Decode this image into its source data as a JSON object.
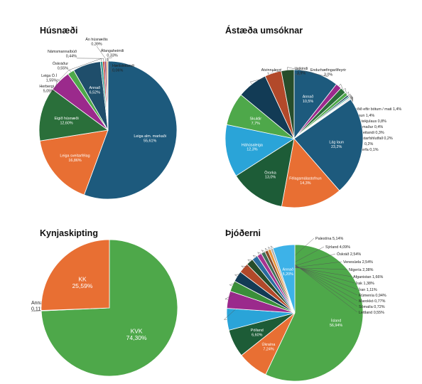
{
  "colors": {
    "navy": "#1d5a7d",
    "orange": "#e86f33",
    "green": "#2a6f3a",
    "purple": "#9b2a8c",
    "lightgreen": "#4ea84a",
    "teal": "#2f9b8f",
    "lightblue": "#2aa4d8",
    "darkgreen": "#1d5c37",
    "darknavy": "#123b55",
    "rust": "#b2492a",
    "deepgreen": "#264d2b",
    "blue2": "#2a6da0",
    "magenta": "#a63491",
    "grey": "#b0b0b0",
    "brown": "#8a4a2a",
    "sky": "#3db2e8"
  },
  "chart_data": [
    {
      "type": "pie",
      "title": "Húsnæði",
      "slices": [
        {
          "label": "Leiga alm. markaði",
          "value": 55.61,
          "value_text": "55,61%",
          "color": "#1d5a7d",
          "label_pos": "inside"
        },
        {
          "label": "Leiga sveitarfélag",
          "value": 16.86,
          "value_text": "16,86%",
          "color": "#e86f33",
          "label_pos": "inside"
        },
        {
          "label": "Eigið húsnæði",
          "value": 12.6,
          "value_text": "12,60%",
          "color": "#2a6f3a",
          "label_pos": "inside"
        },
        {
          "label": "Herbergi",
          "value": 5.05,
          "value_text": "5,05%",
          "color": "#9b2a8c",
          "label_pos": "outside"
        },
        {
          "label": "Leiga Ö.Í",
          "value": 1.55,
          "value_text": "1,55%",
          "color": "#4ea84a",
          "label_pos": "outside"
        },
        {
          "label": "Annað",
          "value": 6.52,
          "value_text": "6,52%",
          "color": "#1f4e6b",
          "label_pos": "inside"
        },
        {
          "label": "Óskráður",
          "value": 0.55,
          "value_text": "0,55%",
          "color": "#2f9b8f",
          "label_pos": "outside"
        },
        {
          "label": "Námsmannaíbúð",
          "value": 0.44,
          "value_text": "0,44%",
          "color": "#c0392b",
          "label_pos": "outside"
        },
        {
          "label": "Án húsnæðis",
          "value": 0.39,
          "value_text": "0,39%",
          "color": "#7a2a6e",
          "label_pos": "outside"
        },
        {
          "label": "Áfangaheimili",
          "value": 0.33,
          "value_text": "0,33%",
          "color": "#d98c3c",
          "label_pos": "outside"
        },
        {
          "label": "Hælisleitandi",
          "value": 0.06,
          "value_text": "0,06%",
          "color": "#888888",
          "label_pos": "outside"
        }
      ]
    },
    {
      "type": "pie",
      "title": "Ástæða umsóknar",
      "slices": [
        {
          "label": "Annað",
          "value": 10.5,
          "value_text": "10,5%",
          "color": "#1d5a7d",
          "label_pos": "inside"
        },
        {
          "label": "Beðið eftir bótum / mati",
          "value": 1.4,
          "value_text": "1,4%",
          "color": "#9b2a8c",
          "label_pos": "outside"
        },
        {
          "label": "Ellilaun",
          "value": 1.4,
          "value_text": "1,4%",
          "color": "#2a6f3a",
          "label_pos": "outside"
        },
        {
          "label": "Maki tekjulaus",
          "value": 0.8,
          "value_text": "0,8%",
          "color": "#4ea84a",
          "label_pos": "outside"
        },
        {
          "label": "Námsmaður",
          "value": 0.4,
          "value_text": "0,4%",
          "color": "#123b55",
          "label_pos": "outside"
        },
        {
          "label": "Hælisleitandi",
          "value": 0.3,
          "value_text": "0,3%",
          "color": "#2f9b8f",
          "label_pos": "outside"
        },
        {
          "label": "Skert starfshlutfall",
          "value": 0.2,
          "value_text": "0,2%",
          "color": "#b0b0b0",
          "label_pos": "outside"
        },
        {
          "label": "Vantar",
          "value": 0.2,
          "value_text": "0,2%",
          "color": "#7a7a7a",
          "label_pos": "outside"
        },
        {
          "label": "Milli kerfa",
          "value": 0.1,
          "value_text": "0,1%",
          "color": "#e86f33",
          "label_pos": "outside"
        },
        {
          "label": "Lág laun",
          "value": 23.2,
          "value_text": "23,2%",
          "color": "#1d5a7d",
          "label_pos": "inside"
        },
        {
          "label": "Félagsmálastofnun",
          "value": 14.3,
          "value_text": "14,3%",
          "color": "#e86f33",
          "label_pos": "inside"
        },
        {
          "label": "Örorka",
          "value": 13.0,
          "value_text": "13,0%",
          "color": "#1d5c37",
          "label_pos": "inside"
        },
        {
          "label": "Háhúsaleiga",
          "value": 12.3,
          "value_text": "12,3%",
          "color": "#2aa4d8",
          "label_pos": "inside"
        },
        {
          "label": "Skuldir",
          "value": 7.7,
          "value_text": "7,7%",
          "color": "#4ea84a",
          "label_pos": "inside"
        },
        {
          "label": "Atvinnuleysi",
          "value": 7.1,
          "value_text": "7,1%",
          "color": "#123b55",
          "label_pos": "outside-top"
        },
        {
          "label": "Veikindi",
          "value": 3.9,
          "value_text": "3,9%",
          "color": "#b2492a",
          "label_pos": "outside-top"
        },
        {
          "label": "Endurhæfingarlífeyrir",
          "value": 3.0,
          "value_text": "3,0%",
          "color": "#264d2b",
          "label_pos": "outside-top"
        }
      ]
    },
    {
      "type": "pie",
      "title": "Kynjaskipting",
      "slices": [
        {
          "label": "KVK",
          "value": 74.3,
          "value_text": "74,30%",
          "color": "#4ea84a",
          "label_pos": "inside"
        },
        {
          "label": "Annað",
          "value": 0.11,
          "value_text": "0,11%",
          "color": "#555555",
          "label_pos": "outside-left"
        },
        {
          "label": "KK",
          "value": 25.59,
          "value_text": "25,59%",
          "color": "#e86f33",
          "label_pos": "inside"
        }
      ]
    },
    {
      "type": "pie",
      "title": "Þjóðerni",
      "slices": [
        {
          "label": "Ísland",
          "value": 56.94,
          "value_text": "56,94%",
          "color": "#4ea84a",
          "label_pos": "inside"
        },
        {
          "label": "Úkraína",
          "value": 7.24,
          "value_text": "7,24%",
          "color": "#e86f33",
          "label_pos": "inside"
        },
        {
          "label": "Pólland",
          "value": 6.6,
          "value_text": "6,60%",
          "color": "#1d5c37",
          "label_pos": "inside"
        },
        {
          "label": "Palestína",
          "value": 5.14,
          "value_text": "5,14%",
          "color": "#2aa4d8",
          "label_pos": "outside"
        },
        {
          "label": "Sýrland",
          "value": 4.09,
          "value_text": "4,09%",
          "color": "#9b2a8c",
          "label_pos": "outside"
        },
        {
          "label": "Óskráð",
          "value": 2.54,
          "value_text": "2,54%",
          "color": "#3a8f3a",
          "label_pos": "outside"
        },
        {
          "label": "Venesúela",
          "value": 2.54,
          "value_text": "2,54%",
          "color": "#123b55",
          "label_pos": "outside"
        },
        {
          "label": "Nígería",
          "value": 2.38,
          "value_text": "2,38%",
          "color": "#b2492a",
          "label_pos": "outside"
        },
        {
          "label": "Afganistan",
          "value": 1.66,
          "value_text": "1,66%",
          "color": "#264d2b",
          "label_pos": "outside"
        },
        {
          "label": "Írak",
          "value": 1.38,
          "value_text": "1,38%",
          "color": "#2a6da0",
          "label_pos": "outside"
        },
        {
          "label": "Íran",
          "value": 1.11,
          "value_text": "1,11%",
          "color": "#a63491",
          "label_pos": "outside"
        },
        {
          "label": "Rúmenía",
          "value": 0.94,
          "value_text": "0,94%",
          "color": "#3f6f5a",
          "label_pos": "outside"
        },
        {
          "label": "Marokkó",
          "value": 0.77,
          "value_text": "0,77%",
          "color": "#8a4a2a",
          "label_pos": "outside"
        },
        {
          "label": "Sómalía",
          "value": 0.72,
          "value_text": "0,72%",
          "color": "#e8963a",
          "label_pos": "outside"
        },
        {
          "label": "Lettland",
          "value": 0.55,
          "value_text": "0,55%",
          "color": "#b0b0b0",
          "label_pos": "outside"
        },
        {
          "label": "Annað",
          "value": 5.2,
          "value_text": "5,20%",
          "color": "#3db2e8",
          "label_pos": "inside"
        }
      ]
    }
  ]
}
